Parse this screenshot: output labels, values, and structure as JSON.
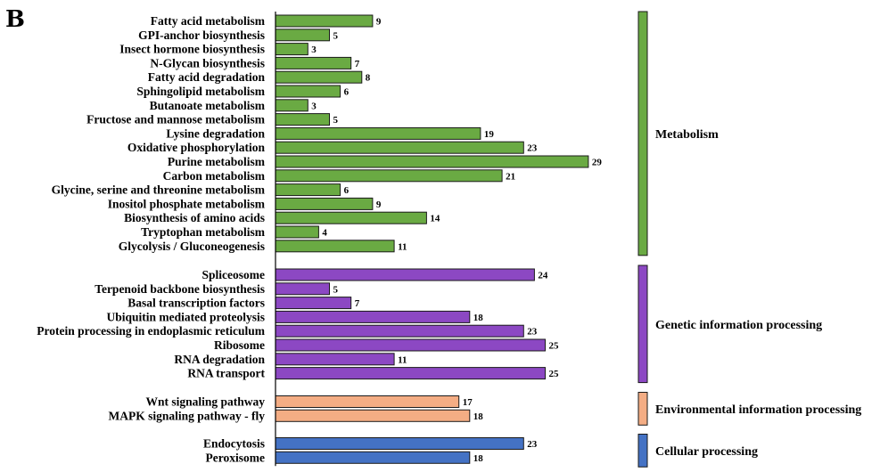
{
  "panel_label": "B",
  "colors": {
    "Metabolism": "#6aaa43",
    "Genetic information processing": "#8c48c3",
    "Environmental information processing": "#f4ad84",
    "Cellular processing": "#4472c4"
  },
  "chart_data": {
    "type": "bar",
    "orientation": "horizontal",
    "xlim": [
      0,
      31
    ],
    "grid": false,
    "groups": [
      {
        "name": "Metabolism",
        "categories": [
          "Fatty acid metabolism",
          "GPI-anchor biosynthesis",
          "Insect hormone biosynthesis",
          "N-Glycan biosynthesis",
          "Fatty acid degradation",
          "Sphingolipid metabolism",
          "Butanoate metabolism",
          "Fructose and mannose metabolism",
          "Lysine degradation",
          "Oxidative phosphorylation",
          "Purine metabolism",
          "Carbon metabolism",
          "Glycine, serine and threonine metabolism",
          "Inositol phosphate metabolism",
          "Biosynthesis of amino acids",
          "Tryptophan metabolism",
          "Glycolysis / Gluconeogenesis"
        ],
        "values": [
          9,
          5,
          3,
          7,
          8,
          6,
          3,
          5,
          19,
          23,
          29,
          21,
          6,
          9,
          14,
          4,
          11
        ]
      },
      {
        "name": "Genetic information processing",
        "categories": [
          "Spliceosome",
          "Terpenoid backbone biosynthesis",
          "Basal transcription factors",
          "Ubiquitin mediated proteolysis",
          "Protein processing in endoplasmic reticulum",
          "Ribosome",
          "RNA degradation",
          "RNA transport"
        ],
        "values": [
          24,
          5,
          7,
          18,
          23,
          25,
          11,
          25
        ]
      },
      {
        "name": "Environmental information processing",
        "categories": [
          "Wnt signaling pathway",
          "MAPK signaling pathway - fly"
        ],
        "values": [
          17,
          18
        ]
      },
      {
        "name": "Cellular processing",
        "categories": [
          "Endocytosis",
          "Peroxisome"
        ],
        "values": [
          23,
          18
        ]
      }
    ]
  }
}
